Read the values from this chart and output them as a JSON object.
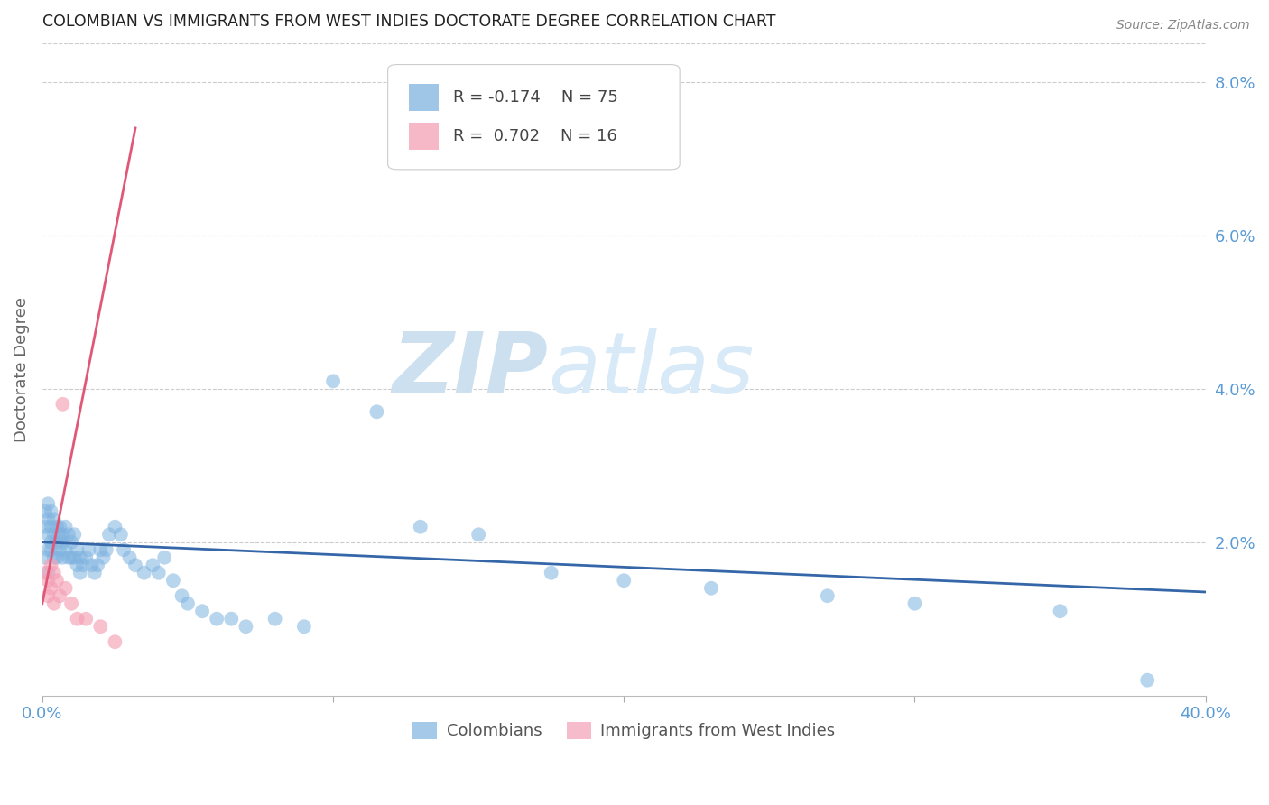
{
  "title": "COLOMBIAN VS IMMIGRANTS FROM WEST INDIES DOCTORATE DEGREE CORRELATION CHART",
  "source": "Source: ZipAtlas.com",
  "ylabel": "Doctorate Degree",
  "watermark_zip": "ZIP",
  "watermark_atlas": "atlas",
  "xlim": [
    0.0,
    0.4
  ],
  "ylim": [
    0.0,
    0.085
  ],
  "xtick_vals": [
    0.0,
    0.1,
    0.2,
    0.3,
    0.4
  ],
  "yticks_right": [
    0.02,
    0.04,
    0.06,
    0.08
  ],
  "ytick_right_labels": [
    "2.0%",
    "4.0%",
    "6.0%",
    "8.0%"
  ],
  "blue_color": "#7fb3e0",
  "pink_color": "#f4a0b5",
  "blue_line_color": "#3466a8",
  "pink_line_color": "#e05878",
  "axis_label_color": "#5b9bd5",
  "grid_color": "#cccccc",
  "blue_trend_x0": 0.0,
  "blue_trend_y0": 0.02,
  "blue_trend_x1": 0.4,
  "blue_trend_y1": 0.0135,
  "pink_trend_x0": 0.0,
  "pink_trend_y0": 0.012,
  "pink_trend_x1": 0.032,
  "pink_trend_y1": 0.074,
  "blue_x": [
    0.001,
    0.001,
    0.002,
    0.002,
    0.002,
    0.002,
    0.003,
    0.003,
    0.003,
    0.003,
    0.004,
    0.004,
    0.004,
    0.005,
    0.005,
    0.005,
    0.006,
    0.006,
    0.006,
    0.007,
    0.007,
    0.007,
    0.008,
    0.008,
    0.009,
    0.009,
    0.01,
    0.01,
    0.011,
    0.011,
    0.012,
    0.012,
    0.013,
    0.013,
    0.014,
    0.015,
    0.016,
    0.017,
    0.018,
    0.019,
    0.02,
    0.021,
    0.022,
    0.023,
    0.025,
    0.027,
    0.028,
    0.03,
    0.032,
    0.035,
    0.038,
    0.04,
    0.042,
    0.045,
    0.048,
    0.05,
    0.055,
    0.06,
    0.065,
    0.07,
    0.08,
    0.09,
    0.1,
    0.115,
    0.13,
    0.15,
    0.175,
    0.2,
    0.23,
    0.27,
    0.3,
    0.35,
    0.38,
    0.001,
    0.002
  ],
  "blue_y": [
    0.024,
    0.022,
    0.025,
    0.023,
    0.021,
    0.019,
    0.024,
    0.022,
    0.02,
    0.019,
    0.023,
    0.021,
    0.018,
    0.022,
    0.02,
    0.018,
    0.022,
    0.021,
    0.019,
    0.021,
    0.02,
    0.018,
    0.022,
    0.019,
    0.021,
    0.018,
    0.02,
    0.018,
    0.021,
    0.018,
    0.019,
    0.017,
    0.018,
    0.016,
    0.017,
    0.018,
    0.019,
    0.017,
    0.016,
    0.017,
    0.019,
    0.018,
    0.019,
    0.021,
    0.022,
    0.021,
    0.019,
    0.018,
    0.017,
    0.016,
    0.017,
    0.016,
    0.018,
    0.015,
    0.013,
    0.012,
    0.011,
    0.01,
    0.01,
    0.009,
    0.01,
    0.009,
    0.041,
    0.037,
    0.022,
    0.021,
    0.016,
    0.015,
    0.014,
    0.013,
    0.012,
    0.011,
    0.002,
    0.018,
    0.016
  ],
  "pink_x": [
    0.001,
    0.002,
    0.002,
    0.003,
    0.003,
    0.004,
    0.004,
    0.005,
    0.006,
    0.007,
    0.008,
    0.01,
    0.012,
    0.015,
    0.02,
    0.025
  ],
  "pink_y": [
    0.016,
    0.015,
    0.013,
    0.017,
    0.014,
    0.016,
    0.012,
    0.015,
    0.013,
    0.038,
    0.014,
    0.012,
    0.01,
    0.01,
    0.009,
    0.007
  ]
}
